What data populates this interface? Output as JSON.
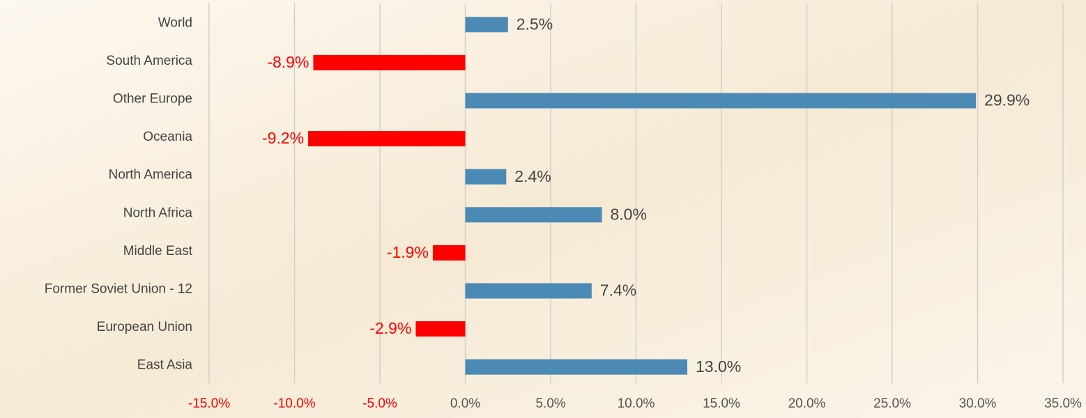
{
  "chart_data": {
    "type": "bar",
    "orientation": "horizontal",
    "categories": [
      "World",
      "South America",
      "Other Europe",
      "Oceania",
      "North America",
      "North Africa",
      "Middle East",
      "Former Soviet Union - 12",
      "European Union",
      "East Asia"
    ],
    "values": [
      2.5,
      -8.9,
      29.9,
      -9.2,
      2.4,
      8.0,
      -1.9,
      7.4,
      -2.9,
      13.0
    ],
    "value_labels": [
      "2.5%",
      "-8.9%",
      "29.9%",
      "-9.2%",
      "2.4%",
      "8.0%",
      "-1.9%",
      "7.4%",
      "-2.9%",
      "13.0%"
    ],
    "color": "#4a8ab5",
    "negative_color": "#ff0000",
    "xlim": [
      -15,
      35
    ],
    "xticks": [
      {
        "value": -15,
        "label": "-15.0%"
      },
      {
        "value": -10,
        "label": "-10.0%"
      },
      {
        "value": -5,
        "label": "-5.0%"
      },
      {
        "value": 0,
        "label": "0.0%"
      },
      {
        "value": 5,
        "label": "5.0%"
      },
      {
        "value": 10,
        "label": "10.0%"
      },
      {
        "value": 15,
        "label": "15.0%"
      },
      {
        "value": 20,
        "label": "20.0%"
      },
      {
        "value": 25,
        "label": "25.0%"
      },
      {
        "value": 30,
        "label": "30.0%"
      },
      {
        "value": 35,
        "label": "35.0%"
      }
    ],
    "grid": true
  }
}
